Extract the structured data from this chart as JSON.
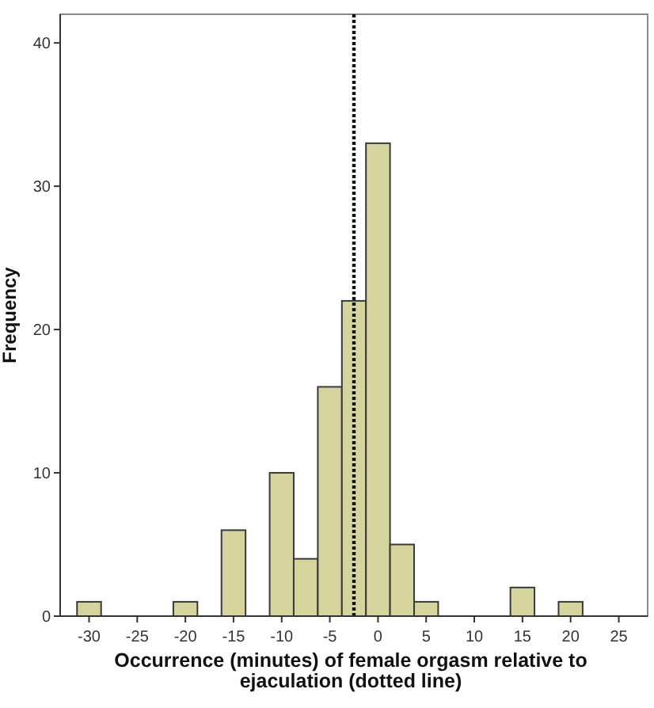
{
  "chart_data": {
    "type": "histogram",
    "xlabel": "Occurrence (minutes) of female orgasm relative to ejaculation (dotted line)",
    "ylabel": "Frequency",
    "bins": [
      -31.25,
      -28.75,
      -26.25,
      -23.75,
      -21.25,
      -18.75,
      -16.25,
      -13.75,
      -11.25,
      -8.75,
      -6.25,
      -3.75,
      -1.25,
      1.25,
      3.75,
      6.25,
      8.75,
      11.25,
      13.75,
      16.25,
      18.75,
      21.25
    ],
    "values": [
      1,
      0,
      0,
      0,
      1,
      0,
      6,
      0,
      10,
      4,
      16,
      22,
      33,
      5,
      1,
      0,
      0,
      0,
      2,
      0,
      1
    ],
    "color": "#d4d49c",
    "xlim": [
      -33,
      28
    ],
    "xticks": [
      -30,
      -25,
      -20,
      -15,
      -10,
      -5,
      0,
      5,
      10,
      15,
      20,
      25
    ],
    "ylim": [
      0,
      42
    ],
    "yticks": [
      0,
      10,
      20,
      30,
      40
    ],
    "ref_lines": [
      {
        "axis": "x",
        "value": -2.5,
        "line_style": "dotted",
        "color": "#111111"
      }
    ],
    "grid": false
  }
}
